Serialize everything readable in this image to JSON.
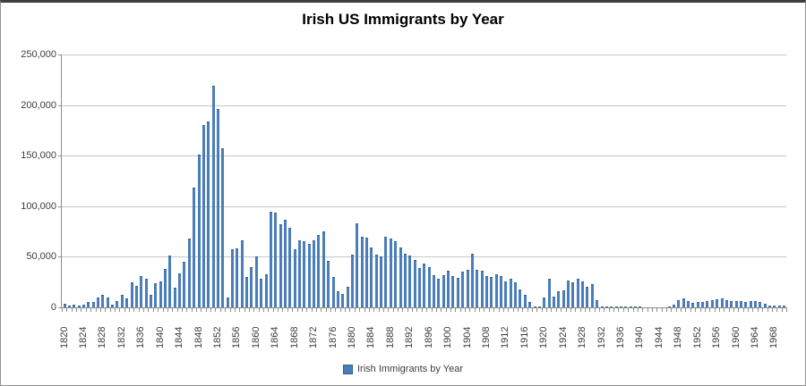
{
  "window": {
    "kind": "excel-style-chart-image",
    "background": "#ffffff",
    "border_color": "#909090"
  },
  "colors": {
    "bar_fill": "#4a7ebb",
    "bar_edge": "#38618f",
    "gridline": "#c6c6c6",
    "axis_line": "#8c8c8c",
    "text": "#3d3d3d",
    "title_text": "#000000"
  },
  "chart_data": {
    "type": "bar",
    "title": "Irish US Immigrants by Year",
    "legend": "Irish Immigrants  by Year",
    "legend_position": "bottom-center",
    "grid": true,
    "xlabel": "",
    "ylabel": "",
    "ylim": [
      0,
      250000
    ],
    "y_tick_values": [
      0,
      50000,
      100000,
      150000,
      200000,
      250000
    ],
    "y_tick_labels": [
      "0",
      "50,000",
      "100,000",
      "150,000",
      "200,000",
      "250,000"
    ],
    "x_tick_labels": [
      "1820",
      "1824",
      "1828",
      "1832",
      "1836",
      "1840",
      "1844",
      "1848",
      "1852",
      "1856",
      "1860",
      "1864",
      "1868",
      "1872",
      "1876",
      "1880",
      "1884",
      "1888",
      "1892",
      "1896",
      "1900",
      "1904",
      "1908",
      "1912",
      "1916",
      "1920",
      "1924",
      "1928",
      "1932",
      "1936",
      "1940",
      "1944",
      "1948",
      "1952",
      "1956",
      "1960",
      "1964",
      "1968"
    ],
    "year_start": 1820,
    "year_end": 1970,
    "values": [
      3600,
      1500,
      2300,
      1900,
      2300,
      4900,
      5400,
      9800,
      12500,
      10000,
      2700,
      5800,
      12400,
      8600,
      24500,
      20900,
      30600,
      28500,
      12600,
      24000,
      25300,
      37800,
      51300,
      19700,
      33500,
      44800,
      68000,
      118100,
      151000,
      180200,
      183700,
      219200,
      195800,
      157000,
      10000,
      57200,
      58000,
      66000,
      30000,
      40000,
      50000,
      28000,
      33000,
      94500,
      93500,
      82000,
      86600,
      78500,
      57700,
      66500,
      65200,
      63000,
      66500,
      71500,
      75000,
      46000,
      30000,
      16000,
      13000,
      20000,
      52000,
      83000,
      70000,
      69000,
      59000,
      52000,
      50000,
      70000,
      68000,
      65000,
      59000,
      53000,
      51000,
      47000,
      39000,
      43000,
      40000,
      32000,
      28000,
      32000,
      36000,
      31000,
      29000,
      35000,
      37000,
      52900,
      37000,
      36000,
      31000,
      30000,
      33000,
      31000,
      26000,
      28000,
      24700,
      18000,
      12000,
      5400,
      1000,
      500,
      9600,
      28400,
      10600,
      15700,
      17100,
      26700,
      24900,
      28100,
      25300,
      19900,
      23400,
      6900,
      500,
      300,
      450,
      450,
      440,
      480,
      650,
      580,
      590,
      270,
      100,
      100,
      100,
      200,
      440,
      2600,
      7500,
      8700,
      5800,
      4800,
      5500,
      4900,
      6000,
      7200,
      7700,
      9100,
      7400,
      6600,
      6000,
      6300,
      5400,
      6000,
      6300,
      5500,
      3200,
      2000,
      2200,
      1900,
      1600
    ]
  }
}
